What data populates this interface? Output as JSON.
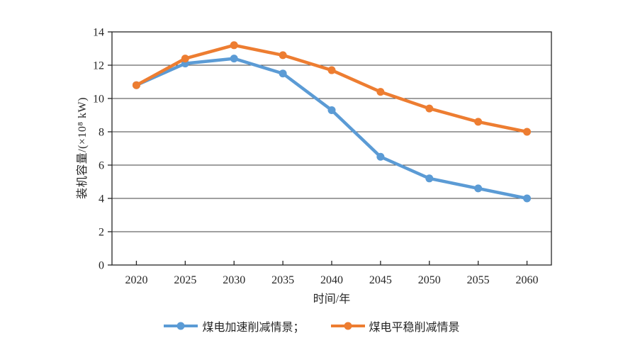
{
  "chart_data": {
    "type": "line",
    "title": "",
    "categories": [
      "2020",
      "2025",
      "2030",
      "2035",
      "2040",
      "2045",
      "2050",
      "2055",
      "2060"
    ],
    "series": [
      {
        "id": "accelerated-reduction",
        "name": "煤电加速削减情景",
        "legend_label": "煤电加速削减情景；",
        "color": "#5B9BD5",
        "values": [
          10.8,
          12.1,
          12.4,
          11.5,
          9.3,
          6.5,
          5.2,
          4.6,
          4.0
        ]
      },
      {
        "id": "steady-reduction",
        "name": "煤电平稳削减情景",
        "legend_label": "煤电平稳削减情景",
        "color": "#ED7D31",
        "values": [
          10.8,
          12.4,
          13.2,
          12.6,
          11.7,
          10.4,
          9.4,
          8.6,
          8.0
        ]
      }
    ],
    "xlabel": "时间/年",
    "ylabel": "装机容量/(×10⁸ kW)",
    "ylim": [
      0,
      14
    ],
    "yticks": [
      0,
      2,
      4,
      6,
      8,
      10,
      12,
      14
    ],
    "grid": "horizontal",
    "legend_position": "bottom",
    "style": {
      "axis_color": "#262626",
      "grid_color": "#404040",
      "background": "#ffffff",
      "line_width": 4.5,
      "marker_radius": 5.5
    }
  }
}
